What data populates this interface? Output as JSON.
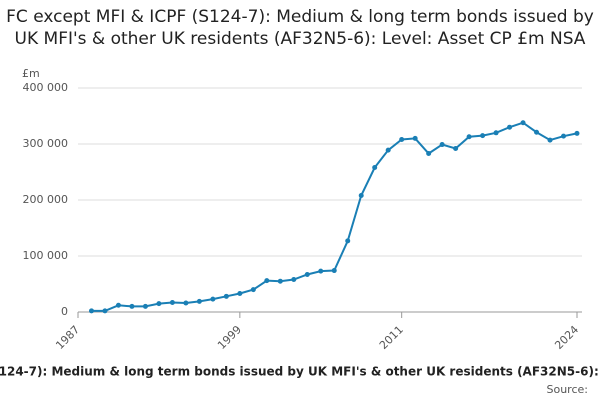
{
  "chart_data": {
    "type": "line",
    "title": "FC except MFI & ICPF (S124-7): Medium & long term bonds issued by UK MFI's & other UK residents (AF32N5-6): Level: Asset CP £m NSA",
    "y_unit": "£m",
    "source": "Source:",
    "x": [
      1988,
      1989,
      1990,
      1991,
      1992,
      1993,
      1994,
      1995,
      1996,
      1997,
      1998,
      1999,
      2000,
      2001,
      2002,
      2003,
      2004,
      2005,
      2006,
      2007,
      2008,
      2009,
      2010,
      2011,
      2012,
      2013,
      2014,
      2015,
      2016,
      2017,
      2018,
      2019,
      2020,
      2021,
      2022,
      2023,
      2024
    ],
    "series": [
      {
        "name": "FC except MFI & ICPF (S124-7): Medium & long term bonds issued by UK MFI's & other UK residents (AF32N5-6): Level: Asset CP £m NSA",
        "color": "#1a7fb5",
        "values": [
          2000,
          2000,
          12000,
          10000,
          10000,
          15000,
          17000,
          16000,
          19000,
          23000,
          28000,
          33000,
          40000,
          56000,
          55000,
          58000,
          67000,
          73000,
          74000,
          127000,
          208000,
          258000,
          289000,
          308000,
          310000,
          283000,
          299000,
          292000,
          313000,
          315000,
          320000,
          330000,
          338000,
          321000,
          307000,
          314000,
          319000
        ]
      }
    ],
    "xlim": [
      1987,
      2024
    ],
    "xticks": [
      1987,
      1999,
      2011,
      2024
    ],
    "ylim": [
      0,
      400000
    ],
    "yticks": [
      0,
      {
        "value": 100000,
        "label": "100 000"
      },
      {
        "value": 200000,
        "label": "200 000"
      },
      {
        "value": 300000,
        "label": "300 000"
      },
      {
        "value": 400000,
        "label": "400 000"
      }
    ],
    "grid": true
  }
}
